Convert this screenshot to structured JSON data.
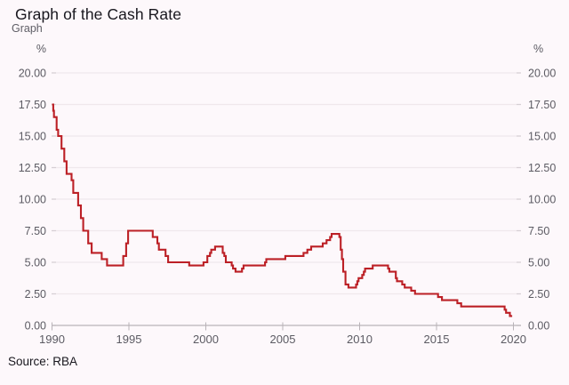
{
  "chart_data": {
    "type": "line",
    "title": "Graph of the Cash Rate",
    "subtitle": "Graph",
    "y_unit_left": "%",
    "y_unit_right": "%",
    "source": "Source: RBA",
    "x_range": [
      1990,
      2020
    ],
    "y_range": [
      0,
      20
    ],
    "grid": "horizontal",
    "legend": "none",
    "line_style": "step-after",
    "colors": {
      "line": "#bc2026",
      "grid": "#f0e8ec",
      "grid_end_tick": "#d6cfd4",
      "axis": "#b9b3b8",
      "tick_label": "#5c5b63",
      "title": "#18171e",
      "background": "#fdf8fb"
    },
    "xticks": [
      {
        "value": 1990,
        "label": "1990"
      },
      {
        "value": 1995,
        "label": "1995"
      },
      {
        "value": 2000,
        "label": "2000"
      },
      {
        "value": 2005,
        "label": "2005"
      },
      {
        "value": 2010,
        "label": "2010"
      },
      {
        "value": 2015,
        "label": "2015"
      },
      {
        "value": 2020,
        "label": "2020"
      }
    ],
    "yticks": [
      {
        "value": 0,
        "label": "0.00"
      },
      {
        "value": 2.5,
        "label": "2.50"
      },
      {
        "value": 5,
        "label": "5.00"
      },
      {
        "value": 7.5,
        "label": "7.50"
      },
      {
        "value": 10,
        "label": "10.00"
      },
      {
        "value": 12.5,
        "label": "12.50"
      },
      {
        "value": 15,
        "label": "15.00"
      },
      {
        "value": 17.5,
        "label": "17.50"
      },
      {
        "value": 20,
        "label": "20.00"
      }
    ],
    "series": [
      {
        "name": "Cash Rate",
        "points": [
          [
            1990.0,
            17.5
          ],
          [
            1990.08,
            17.0
          ],
          [
            1990.13,
            16.5
          ],
          [
            1990.3,
            15.5
          ],
          [
            1990.4,
            15.0
          ],
          [
            1990.62,
            14.0
          ],
          [
            1990.8,
            13.0
          ],
          [
            1990.95,
            12.0
          ],
          [
            1991.27,
            11.5
          ],
          [
            1991.38,
            10.5
          ],
          [
            1991.7,
            9.5
          ],
          [
            1991.88,
            8.5
          ],
          [
            1992.03,
            7.5
          ],
          [
            1992.35,
            6.5
          ],
          [
            1992.58,
            5.75
          ],
          [
            1993.23,
            5.25
          ],
          [
            1993.58,
            4.75
          ],
          [
            1994.63,
            5.5
          ],
          [
            1994.82,
            6.5
          ],
          [
            1994.95,
            7.5
          ],
          [
            1996.55,
            7.0
          ],
          [
            1996.85,
            6.5
          ],
          [
            1996.95,
            6.0
          ],
          [
            1997.38,
            5.5
          ],
          [
            1997.55,
            5.0
          ],
          [
            1998.92,
            4.75
          ],
          [
            1999.85,
            5.0
          ],
          [
            2000.1,
            5.5
          ],
          [
            2000.27,
            5.75
          ],
          [
            2000.35,
            6.0
          ],
          [
            2000.6,
            6.25
          ],
          [
            2001.1,
            5.75
          ],
          [
            2001.2,
            5.5
          ],
          [
            2001.3,
            5.0
          ],
          [
            2001.68,
            4.75
          ],
          [
            2001.77,
            4.5
          ],
          [
            2001.93,
            4.25
          ],
          [
            2002.35,
            4.5
          ],
          [
            2002.45,
            4.75
          ],
          [
            2003.85,
            5.0
          ],
          [
            2003.93,
            5.25
          ],
          [
            2005.17,
            5.5
          ],
          [
            2006.35,
            5.75
          ],
          [
            2006.6,
            6.0
          ],
          [
            2006.85,
            6.25
          ],
          [
            2007.6,
            6.5
          ],
          [
            2007.85,
            6.75
          ],
          [
            2008.08,
            7.0
          ],
          [
            2008.18,
            7.25
          ],
          [
            2008.68,
            7.0
          ],
          [
            2008.77,
            6.0
          ],
          [
            2008.85,
            5.25
          ],
          [
            2008.93,
            4.25
          ],
          [
            2009.08,
            3.25
          ],
          [
            2009.27,
            3.0
          ],
          [
            2009.77,
            3.25
          ],
          [
            2009.85,
            3.5
          ],
          [
            2009.93,
            3.75
          ],
          [
            2010.17,
            4.0
          ],
          [
            2010.27,
            4.25
          ],
          [
            2010.35,
            4.5
          ],
          [
            2010.85,
            4.75
          ],
          [
            2011.85,
            4.5
          ],
          [
            2011.93,
            4.25
          ],
          [
            2012.35,
            3.75
          ],
          [
            2012.43,
            3.5
          ],
          [
            2012.77,
            3.25
          ],
          [
            2012.93,
            3.0
          ],
          [
            2013.35,
            2.75
          ],
          [
            2013.6,
            2.5
          ],
          [
            2015.1,
            2.25
          ],
          [
            2015.35,
            2.0
          ],
          [
            2016.35,
            1.75
          ],
          [
            2016.6,
            1.5
          ],
          [
            2019.43,
            1.25
          ],
          [
            2019.52,
            1.0
          ],
          [
            2019.77,
            0.75
          ],
          [
            2019.92,
            0.75
          ]
        ]
      }
    ]
  }
}
